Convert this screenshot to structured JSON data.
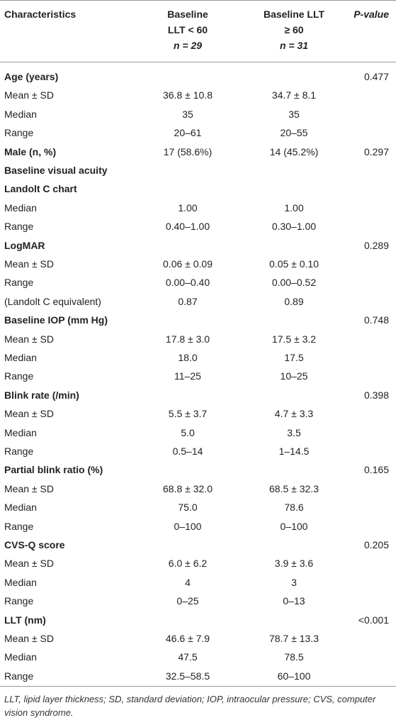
{
  "table": {
    "header": [
      [
        "Characteristics"
      ],
      [
        "Baseline",
        "LLT < 60",
        "n = 29"
      ],
      [
        "Baseline LLT",
        "≥ 60",
        "n = 31"
      ],
      [
        "P-value"
      ]
    ],
    "rows": [
      {
        "label": "Age (years)",
        "heading": true,
        "p": "0.477"
      },
      {
        "label": "Mean ± SD",
        "col1": "36.8 ± 10.8",
        "col2": "34.7 ± 8.1"
      },
      {
        "label": "Median",
        "col1": "35",
        "col2": "35"
      },
      {
        "label": "Range",
        "col1": "20–61",
        "col2": "20–55"
      },
      {
        "label": "Male (n, %)",
        "heading": true,
        "col1": "17 (58.6%)",
        "col2": "14 (45.2%)",
        "p": "0.297"
      },
      {
        "label": "Baseline visual acuity",
        "heading": true
      },
      {
        "label": "Landolt C chart",
        "heading": true
      },
      {
        "label": "Median",
        "col1": "1.00",
        "col2": "1.00"
      },
      {
        "label": "Range",
        "col1": "0.40–1.00",
        "col2": "0.30–1.00"
      },
      {
        "label": "LogMAR",
        "heading": true,
        "p": "0.289"
      },
      {
        "label": "Mean ± SD",
        "col1": "0.06 ± 0.09",
        "col2": "0.05 ± 0.10"
      },
      {
        "label": "Range",
        "col1": "0.00–0.40",
        "col2": "0.00–0.52"
      },
      {
        "label": "(Landolt C equivalent)",
        "col1": "0.87",
        "col2": "0.89"
      },
      {
        "label": "Baseline IOP (mm Hg)",
        "heading": true,
        "p": "0.748"
      },
      {
        "label": "Mean ± SD",
        "col1": "17.8 ± 3.0",
        "col2": "17.5 ± 3.2"
      },
      {
        "label": "Median",
        "col1": "18.0",
        "col2": "17.5"
      },
      {
        "label": "Range",
        "col1": "11–25",
        "col2": "10–25"
      },
      {
        "label": "Blink rate (/min)",
        "heading": true,
        "p": "0.398"
      },
      {
        "label": "Mean ± SD",
        "col1": "5.5 ± 3.7",
        "col2": "4.7 ± 3.3"
      },
      {
        "label": "Median",
        "col1": "5.0",
        "col2": "3.5"
      },
      {
        "label": "Range",
        "col1": "0.5–14",
        "col2": "1–14.5"
      },
      {
        "label": "Partial blink ratio (%)",
        "heading": true,
        "p": "0.165"
      },
      {
        "label": "Mean ± SD",
        "col1": "68.8 ± 32.0",
        "col2": "68.5 ± 32.3"
      },
      {
        "label": "Median",
        "col1": "75.0",
        "col2": "78.6"
      },
      {
        "label": "Range",
        "col1": "0–100",
        "col2": "0–100"
      },
      {
        "label": "CVS-Q score",
        "heading": true,
        "p": "0.205"
      },
      {
        "label": "Mean ± SD",
        "col1": "6.0 ± 6.2",
        "col2": "3.9 ± 3.6"
      },
      {
        "label": "Median",
        "col1": "4",
        "col2": "3"
      },
      {
        "label": "Range",
        "col1": "0–25",
        "col2": "0–13"
      },
      {
        "label": "LLT (nm)",
        "heading": true,
        "p": "<0.001"
      },
      {
        "label": "Mean ± SD",
        "col1": "46.6 ± 7.9",
        "col2": "78.7 ± 13.3"
      },
      {
        "label": "Median",
        "col1": "47.5",
        "col2": "78.5"
      },
      {
        "label": "Range",
        "col1": "32.5–58.5",
        "col2": "60–100"
      }
    ],
    "footnote": "LLT, lipid layer thickness; SD, standard deviation; IOP, intraocular pressure; CVS, computer vision syndrome."
  }
}
